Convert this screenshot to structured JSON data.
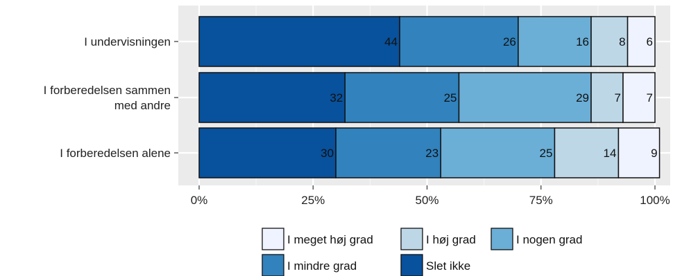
{
  "chart_data": {
    "type": "bar",
    "orientation": "horizontal",
    "stacked": true,
    "categories": [
      "I undervisningen",
      "I forberedelsen sammen med andre",
      "I forberedelsen alene"
    ],
    "category_label_lines": [
      [
        "I undervisningen"
      ],
      [
        "I forberedelsen sammen",
        "med andre"
      ],
      [
        "I forberedelsen alene"
      ]
    ],
    "series": [
      {
        "name": "Slet ikke",
        "values": [
          44,
          32,
          30
        ],
        "color": "#08519c"
      },
      {
        "name": "I mindre grad",
        "values": [
          26,
          25,
          23
        ],
        "color": "#3182bd"
      },
      {
        "name": "I nogen grad",
        "values": [
          16,
          29,
          25
        ],
        "color": "#6baed6"
      },
      {
        "name": "I høj grad",
        "values": [
          8,
          7,
          14
        ],
        "color": "#bdd7e7"
      },
      {
        "name": "I meget høj grad",
        "values": [
          6,
          7,
          9
        ],
        "color": "#eff3ff"
      }
    ],
    "xlim": [
      0,
      100
    ],
    "x_ticks": [
      "0%",
      "25%",
      "50%",
      "75%",
      "100%"
    ],
    "grid": true,
    "legend_position": "bottom",
    "legend_order": [
      "I meget høj grad",
      "I høj grad",
      "I nogen grad",
      "I mindre grad",
      "Slet ikke"
    ],
    "title": "",
    "xlabel": "",
    "ylabel": ""
  }
}
